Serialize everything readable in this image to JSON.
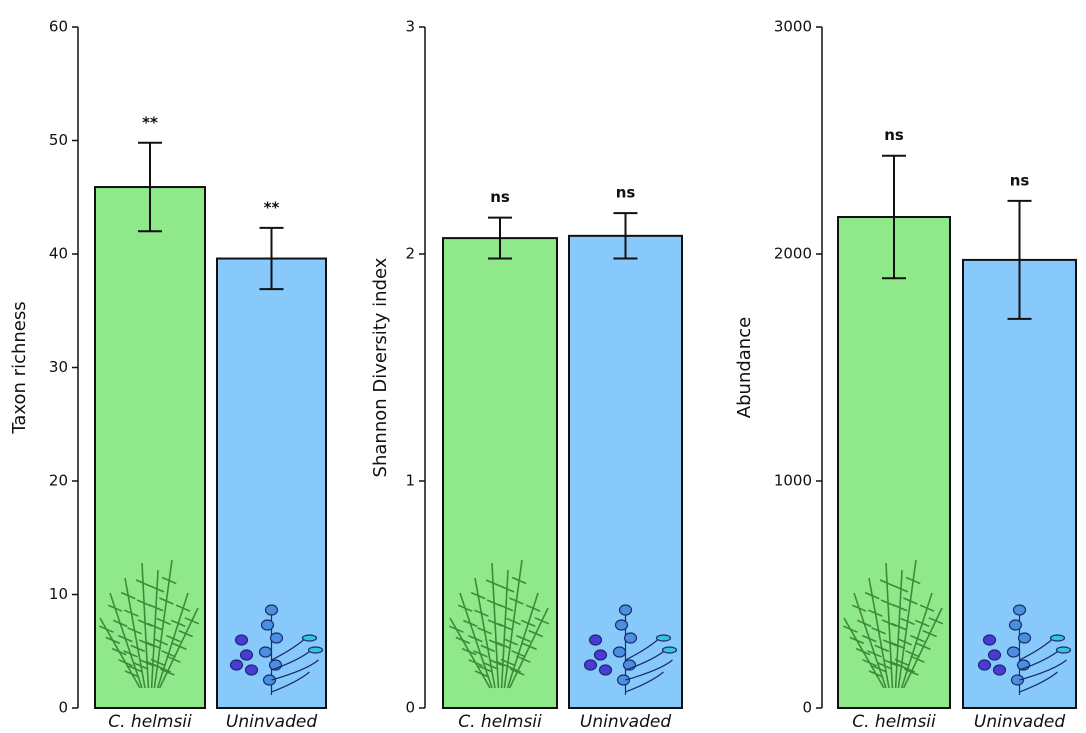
{
  "chart_data": [
    {
      "type": "bar",
      "ylabel": "Taxon richness",
      "categories": [
        "C. helmsii",
        "Uninvaded"
      ],
      "values": [
        45.9,
        39.6
      ],
      "errors": [
        3.9,
        2.7
      ],
      "annotations": [
        "**",
        "**"
      ],
      "colors": [
        "#8fe98a",
        "#87c9fb"
      ],
      "ylim": [
        0,
        60
      ],
      "yticks": [
        0,
        10,
        20,
        30,
        40,
        50,
        60
      ]
    },
    {
      "type": "bar",
      "ylabel": "Shannon Diversity index",
      "categories": [
        "C. helmsii",
        "Uninvaded"
      ],
      "values": [
        2.07,
        2.08
      ],
      "errors": [
        0.09,
        0.1
      ],
      "annotations": [
        "ns",
        "ns"
      ],
      "colors": [
        "#8fe98a",
        "#87c9fb"
      ],
      "ylim": [
        0,
        3
      ],
      "yticks": [
        0,
        1,
        2,
        3
      ]
    },
    {
      "type": "bar",
      "ylabel": "Abundance",
      "categories": [
        "C. helmsii",
        "Uninvaded"
      ],
      "values": [
        2163,
        1974
      ],
      "errors": [
        270,
        260
      ],
      "annotations": [
        "ns",
        "ns"
      ],
      "colors": [
        "#8fe98a",
        "#87c9fb"
      ],
      "ylim": [
        0,
        3000
      ],
      "yticks": [
        0,
        1000,
        2000,
        3000
      ]
    }
  ]
}
